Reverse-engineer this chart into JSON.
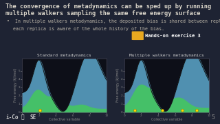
{
  "bg_color": "#1e2333",
  "title_line1": "The convergence of metadynamics can be sped up by running",
  "title_line2": "multiple walkers sampling the same free energy surface",
  "title_color": "#ddd8cc",
  "title_fontsize": 6.2,
  "bullet_text1": "In multiple walkers metadynamics, the deposited bias is shared between replicas so",
  "bullet_text2": "each replica is aware of the whole history of the bias.",
  "bullet_color": "#bbb5a8",
  "bullet_fontsize": 4.8,
  "hands_on_text": "Hands-on exercise 3",
  "hands_on_bg": "#c8960a",
  "hands_on_color": "#ffffff",
  "left_title": "Standard metadynamics",
  "right_title": "Multiple walkers metadynamics",
  "subplot_title_color": "#cccccc",
  "subplot_title_fontsize": 4.5,
  "xlabel": "Collective variable",
  "ylabel": "Free energy (kJ/mol)",
  "axis_label_fontsize": 3.5,
  "plot_bg": "#0d0f18",
  "blue_fill": "#5090b0",
  "green_fill": "#45c068",
  "walker_color": "#ffdd00",
  "page_number": "5",
  "page_number_color": "#888888",
  "logo_color": "#cccccc",
  "logo_fontsize": 5.5,
  "tick_color": "#888888",
  "tick_fontsize": 3.0,
  "spine_color": "#444455"
}
